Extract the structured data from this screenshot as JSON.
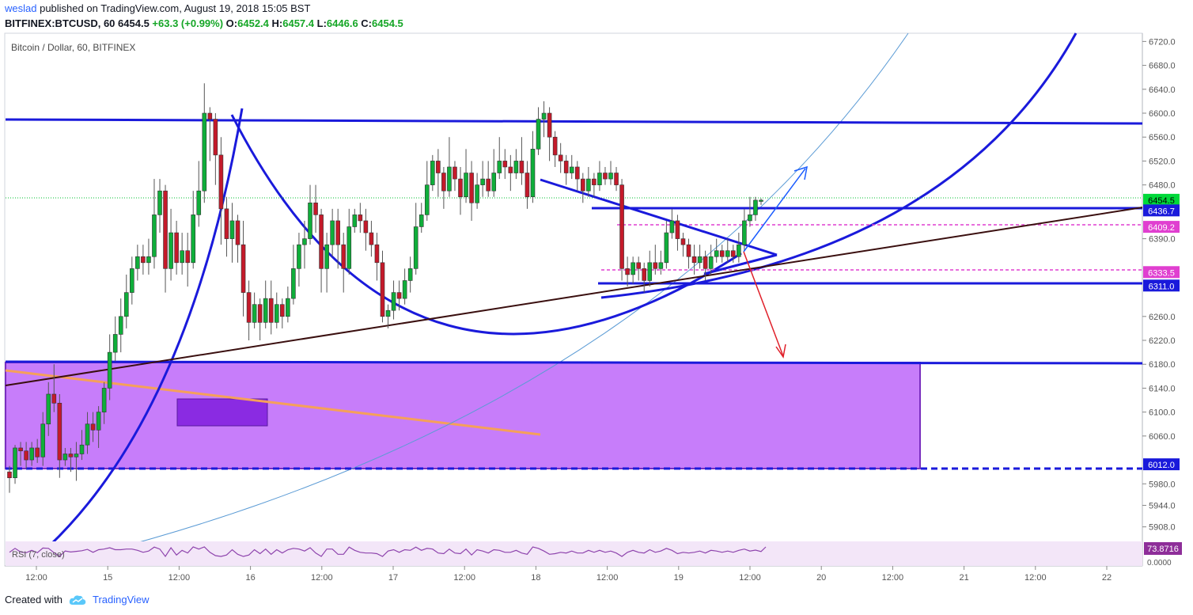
{
  "header": {
    "author": "weslad",
    "published_text": "published on TradingView.com, August 19, 2018 15:05 BST",
    "symbol_line": "BITFINEX:BTCUSD, 60",
    "last": "6454.5",
    "change": "+63.3 (+0.99%)",
    "open_label": "O:",
    "open": "6452.4",
    "high_label": "H:",
    "high": "6457.4",
    "low_label": "L:",
    "low": "6446.6",
    "close_label": "C:",
    "close": "6454.5"
  },
  "footer": {
    "created_with": "Created with",
    "brand": "TradingView"
  },
  "colors": {
    "up": "#0fae3a",
    "down": "#c41a2a",
    "zone": "#b350f5",
    "line_blue": "#1a1adb",
    "magenta": "#e03fd0",
    "price_green": "#00d93a"
  },
  "chart_data": {
    "type": "candlestick",
    "title": "Bitcoin / Dollar, 60, BITFINEX",
    "y_ticks": [
      "6720.0",
      "6680.0",
      "6640.0",
      "6600.0",
      "6560.0",
      "6520.0",
      "6480.0",
      "6390.0",
      "6260.0",
      "6220.0",
      "6180.0",
      "6140.0",
      "6100.0",
      "6060.0",
      "5980.0",
      "5944.0",
      "5908.0"
    ],
    "x_ticks": [
      "12:00",
      "15",
      "12:00",
      "16",
      "12:00",
      "17",
      "12:00",
      "18",
      "12:00",
      "19",
      "12:00",
      "20",
      "12:00",
      "21",
      "12:00",
      "22"
    ],
    "price_labels": [
      {
        "text": "6454.5",
        "kind": "last"
      },
      {
        "text": "6436.7",
        "kind": "level"
      },
      {
        "text": "6409.2",
        "kind": "magenta"
      },
      {
        "text": "6333.5",
        "kind": "magenta"
      },
      {
        "text": "6311.0",
        "kind": "level"
      },
      {
        "text": "6012.0",
        "kind": "level"
      }
    ],
    "rsi": {
      "label": "RSI (7, close)",
      "value": "73.8716",
      "axis_tick": "0.0000"
    },
    "candles": [
      [
        6000,
        5990,
        6010,
        5965
      ],
      [
        5990,
        6040,
        6045,
        5980
      ],
      [
        6040,
        6035,
        6050,
        6010
      ],
      [
        6035,
        6020,
        6050,
        6005
      ],
      [
        6020,
        6040,
        6050,
        6010
      ],
      [
        6040,
        6025,
        6055,
        6015
      ],
      [
        6025,
        6080,
        6100,
        6010
      ],
      [
        6080,
        6130,
        6150,
        6060
      ],
      [
        6130,
        6115,
        6180,
        6100
      ],
      [
        6115,
        6020,
        6130,
        5990
      ],
      [
        6020,
        6030,
        6040,
        6010
      ],
      [
        6030,
        6025,
        6040,
        6000
      ],
      [
        6025,
        6030,
        6050,
        5985
      ],
      [
        6030,
        6045,
        6070,
        6020
      ],
      [
        6045,
        6080,
        6100,
        6030
      ],
      [
        6080,
        6070,
        6100,
        6050
      ],
      [
        6070,
        6100,
        6110,
        6040
      ],
      [
        6100,
        6140,
        6150,
        6080
      ],
      [
        6140,
        6200,
        6230,
        6120
      ],
      [
        6200,
        6230,
        6260,
        6185
      ],
      [
        6230,
        6260,
        6290,
        6200
      ],
      [
        6260,
        6300,
        6330,
        6240
      ],
      [
        6300,
        6340,
        6360,
        6280
      ],
      [
        6340,
        6360,
        6380,
        6320
      ],
      [
        6360,
        6350,
        6380,
        6330
      ],
      [
        6350,
        6360,
        6390,
        6330
      ],
      [
        6360,
        6430,
        6490,
        6340
      ],
      [
        6430,
        6470,
        6490,
        6400
      ],
      [
        6470,
        6340,
        6480,
        6300
      ],
      [
        6340,
        6400,
        6440,
        6320
      ],
      [
        6400,
        6350,
        6420,
        6330
      ],
      [
        6350,
        6370,
        6400,
        6330
      ],
      [
        6370,
        6350,
        6400,
        6310
      ],
      [
        6350,
        6430,
        6470,
        6340
      ],
      [
        6430,
        6470,
        6520,
        6410
      ],
      [
        6470,
        6600,
        6650,
        6450
      ],
      [
        6600,
        6590,
        6610,
        6520
      ],
      [
        6590,
        6530,
        6600,
        6480
      ],
      [
        6530,
        6440,
        6560,
        6380
      ],
      [
        6440,
        6390,
        6460,
        6360
      ],
      [
        6390,
        6420,
        6450,
        6350
      ],
      [
        6420,
        6380,
        6430,
        6350
      ],
      [
        6380,
        6300,
        6420,
        6260
      ],
      [
        6300,
        6250,
        6320,
        6220
      ],
      [
        6250,
        6280,
        6300,
        6240
      ],
      [
        6280,
        6250,
        6290,
        6220
      ],
      [
        6250,
        6290,
        6320,
        6240
      ],
      [
        6290,
        6250,
        6320,
        6230
      ],
      [
        6250,
        6280,
        6300,
        6240
      ],
      [
        6280,
        6260,
        6290,
        6240
      ],
      [
        6260,
        6290,
        6310,
        6250
      ],
      [
        6290,
        6340,
        6380,
        6280
      ],
      [
        6340,
        6380,
        6400,
        6310
      ],
      [
        6380,
        6390,
        6420,
        6340
      ],
      [
        6390,
        6450,
        6480,
        6380
      ],
      [
        6450,
        6430,
        6480,
        6400
      ],
      [
        6430,
        6340,
        6440,
        6300
      ],
      [
        6340,
        6380,
        6400,
        6300
      ],
      [
        6380,
        6420,
        6440,
        6360
      ],
      [
        6420,
        6380,
        6440,
        6340
      ],
      [
        6380,
        6340,
        6400,
        6300
      ],
      [
        6340,
        6410,
        6440,
        6330
      ],
      [
        6410,
        6430,
        6440,
        6400
      ],
      [
        6430,
        6420,
        6450,
        6400
      ],
      [
        6420,
        6400,
        6440,
        6370
      ],
      [
        6400,
        6380,
        6420,
        6360
      ],
      [
        6380,
        6350,
        6400,
        6320
      ],
      [
        6350,
        6260,
        6370,
        6250
      ],
      [
        6260,
        6270,
        6280,
        6240
      ],
      [
        6270,
        6300,
        6320,
        6255
      ],
      [
        6300,
        6290,
        6320,
        6270
      ],
      [
        6290,
        6320,
        6340,
        6280
      ],
      [
        6320,
        6340,
        6360,
        6300
      ],
      [
        6340,
        6410,
        6450,
        6330
      ],
      [
        6410,
        6430,
        6450,
        6400
      ],
      [
        6430,
        6480,
        6520,
        6420
      ],
      [
        6480,
        6520,
        6530,
        6470
      ],
      [
        6520,
        6500,
        6540,
        6460
      ],
      [
        6500,
        6470,
        6510,
        6440
      ],
      [
        6470,
        6510,
        6560,
        6460
      ],
      [
        6510,
        6490,
        6520,
        6470
      ],
      [
        6490,
        6460,
        6510,
        6430
      ],
      [
        6460,
        6500,
        6540,
        6450
      ],
      [
        6500,
        6450,
        6520,
        6420
      ],
      [
        6450,
        6480,
        6500,
        6440
      ],
      [
        6480,
        6490,
        6520,
        6460
      ],
      [
        6490,
        6470,
        6520,
        6460
      ],
      [
        6470,
        6500,
        6540,
        6460
      ],
      [
        6500,
        6520,
        6560,
        6490
      ],
      [
        6520,
        6510,
        6540,
        6490
      ],
      [
        6510,
        6500,
        6530,
        6470
      ],
      [
        6500,
        6520,
        6540,
        6490
      ],
      [
        6520,
        6500,
        6560,
        6480
      ],
      [
        6500,
        6460,
        6520,
        6440
      ],
      [
        6460,
        6540,
        6570,
        6450
      ],
      [
        6540,
        6590,
        6610,
        6530
      ],
      [
        6590,
        6600,
        6620,
        6560
      ],
      [
        6600,
        6560,
        6610,
        6520
      ],
      [
        6560,
        6530,
        6570,
        6510
      ],
      [
        6530,
        6520,
        6550,
        6500
      ],
      [
        6520,
        6500,
        6530,
        6480
      ],
      [
        6500,
        6510,
        6530,
        6490
      ],
      [
        6510,
        6490,
        6520,
        6470
      ],
      [
        6490,
        6470,
        6500,
        6450
      ],
      [
        6470,
        6490,
        6510,
        6460
      ],
      [
        6490,
        6480,
        6500,
        6460
      ],
      [
        6480,
        6500,
        6520,
        6470
      ],
      [
        6500,
        6490,
        6510,
        6480
      ],
      [
        6490,
        6500,
        6520,
        6480
      ],
      [
        6500,
        6480,
        6510,
        6470
      ],
      [
        6480,
        6340,
        6490,
        6320
      ],
      [
        6340,
        6330,
        6360,
        6310
      ],
      [
        6330,
        6350,
        6360,
        6315
      ],
      [
        6350,
        6340,
        6360,
        6320
      ],
      [
        6340,
        6320,
        6350,
        6300
      ],
      [
        6320,
        6350,
        6370,
        6310
      ],
      [
        6350,
        6340,
        6380,
        6330
      ],
      [
        6340,
        6350,
        6370,
        6330
      ],
      [
        6350,
        6400,
        6420,
        6340
      ],
      [
        6400,
        6420,
        6440,
        6390
      ],
      [
        6420,
        6390,
        6430,
        6370
      ],
      [
        6390,
        6380,
        6400,
        6360
      ],
      [
        6380,
        6360,
        6390,
        6340
      ],
      [
        6360,
        6350,
        6380,
        6330
      ],
      [
        6350,
        6360,
        6380,
        6340
      ],
      [
        6360,
        6340,
        6370,
        6320
      ],
      [
        6340,
        6360,
        6380,
        6330
      ],
      [
        6360,
        6370,
        6390,
        6350
      ],
      [
        6370,
        6360,
        6380,
        6350
      ],
      [
        6360,
        6370,
        6390,
        6350
      ],
      [
        6370,
        6360,
        6380,
        6350
      ],
      [
        6360,
        6380,
        6400,
        6350
      ],
      [
        6380,
        6420,
        6440,
        6370
      ],
      [
        6420,
        6430,
        6460,
        6410
      ],
      [
        6430,
        6454.5,
        6460,
        6420
      ],
      [
        6452.4,
        6454.5,
        6457.4,
        6446.6
      ]
    ]
  }
}
